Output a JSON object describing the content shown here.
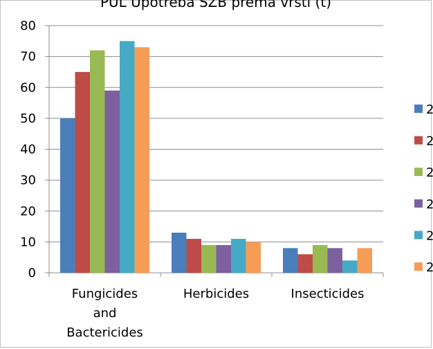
{
  "chart_data": {
    "type": "bar",
    "title": "PUL Upotreba SZB prema vrsti (t)",
    "categories": [
      "Fungicides and Bactericides",
      "Herbicides",
      "Insecticides"
    ],
    "category_lines": [
      [
        "Fungicides",
        "and",
        "Bactericides"
      ],
      [
        "Herbicides"
      ],
      [
        "Insecticides"
      ]
    ],
    "series": [
      {
        "name": "2",
        "color": "#4a7ebb",
        "values": [
          50,
          13,
          8
        ]
      },
      {
        "name": "2",
        "color": "#be4b48",
        "values": [
          65,
          11,
          6
        ]
      },
      {
        "name": "2",
        "color": "#98b954",
        "values": [
          72,
          9,
          9
        ]
      },
      {
        "name": "2",
        "color": "#7d60a0",
        "values": [
          59,
          9,
          8
        ]
      },
      {
        "name": "2",
        "color": "#46aac5",
        "values": [
          75,
          11,
          4
        ]
      },
      {
        "name": "2",
        "color": "#f59d56",
        "values": [
          73,
          10,
          8
        ]
      }
    ],
    "ylim": [
      0,
      80
    ],
    "yticks": [
      0,
      10,
      20,
      30,
      40,
      50,
      60,
      70,
      80
    ],
    "grid": true,
    "legend_position": "right",
    "xlabel": "",
    "ylabel": ""
  }
}
